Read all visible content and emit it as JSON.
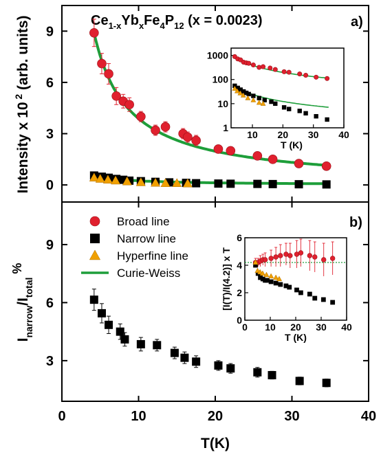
{
  "colors": {
    "broad": "#e0202e",
    "narrow": "#000000",
    "hyperfine": "#f0a000",
    "curie": "#1e9e3a",
    "refline": "#1e9e3a"
  },
  "chart_data": [
    {
      "panel": "a",
      "type": "scatter",
      "title": {
        "prefix": "Ce",
        "sub1": "1-x",
        "mid1": "Yb",
        "sub2": "x",
        "mid2": "Fe",
        "sub3": "4",
        "mid3": "P",
        "sub4": "12",
        "suffix": " (x = 0.0023)"
      },
      "panel_label": "a)",
      "xlim": [
        0,
        40
      ],
      "ylim": [
        -1,
        10.5
      ],
      "yticks": [
        "0",
        "3",
        "6",
        "9"
      ],
      "ytick_values": [
        0,
        3,
        6,
        9
      ],
      "ylabel": {
        "main": "Intensity x 10",
        "sup": " 2",
        "tail": " (arb. units)"
      },
      "series": [
        {
          "key": "broad",
          "x": [
            4.2,
            5.2,
            6.1,
            7.1,
            8.0,
            8.8,
            10.3,
            12.2,
            13.5,
            15.8,
            16.4,
            17.5,
            20.4,
            22.0,
            25.5,
            27.5,
            30.9,
            34.5
          ],
          "y": [
            8.9,
            7.1,
            6.5,
            5.2,
            4.9,
            4.7,
            4.0,
            3.2,
            3.4,
            3.0,
            2.8,
            2.6,
            2.1,
            2.0,
            1.7,
            1.5,
            1.25,
            1.1
          ],
          "err": [
            0.8,
            0.6,
            0.6,
            0.5,
            0.4,
            0.4,
            0.3,
            0.3,
            0.3,
            0.3,
            0.3,
            0.3,
            0.2,
            0.2,
            0.2,
            0.2,
            0.2,
            0.15
          ]
        },
        {
          "key": "narrow",
          "x": [
            4.2,
            5.2,
            6.1,
            7.1,
            8.0,
            8.8,
            10.3,
            12.2,
            14.0,
            16.2,
            17.5,
            20.4,
            22.0,
            25.5,
            27.5,
            30.9,
            34.5
          ],
          "y": [
            0.55,
            0.48,
            0.42,
            0.35,
            0.3,
            0.25,
            0.22,
            0.18,
            0.15,
            0.12,
            0.1,
            0.08,
            0.07,
            0.06,
            0.05,
            0.04,
            0.03
          ]
        },
        {
          "key": "hyperfine",
          "x": [
            4.2,
            5.0,
            6.0,
            7.0,
            8.5,
            10.3,
            12.2,
            13.5,
            15.0,
            16.4
          ],
          "y": [
            0.42,
            0.35,
            0.3,
            0.25,
            0.2,
            0.15,
            0.12,
            0.1,
            0.1,
            0.08
          ]
        }
      ],
      "fit": {
        "key": "curie",
        "model": "C/(T+theta)",
        "C": 40.0,
        "theta": 0.3,
        "x_range": [
          4.2,
          35
        ]
      },
      "fit_narrow": {
        "key": "curie",
        "C": 2.5,
        "theta": 0.3,
        "x_range": [
          4.2,
          35
        ]
      },
      "inset": {
        "type": "scatter",
        "yscale": "log",
        "xlim": [
          3,
          40
        ],
        "ylim": [
          1,
          2000
        ],
        "xticks": [
          "10",
          "20",
          "30",
          "40"
        ],
        "xtick_values": [
          10,
          20,
          30,
          40
        ],
        "yticks": [
          "1",
          "10",
          "100",
          "1000"
        ],
        "ytick_values": [
          1,
          10,
          100,
          1000
        ],
        "xlabel": "T (K)",
        "series": [
          {
            "key": "broad",
            "x": [
              4.2,
              5.2,
              6.1,
              7.1,
              8.0,
              8.8,
              10.3,
              12.2,
              13.5,
              15.8,
              17.5,
              20.4,
              22.0,
              25.5,
              27.5,
              30.9,
              34.5
            ],
            "y": [
              890,
              710,
              650,
              520,
              490,
              470,
              400,
              320,
              340,
              300,
              260,
              210,
              200,
              170,
              150,
              125,
              110
            ]
          },
          {
            "key": "narrow",
            "x": [
              4.2,
              5.2,
              6.1,
              7.1,
              8.0,
              8.8,
              10.3,
              12.2,
              14.0,
              16.2,
              17.5,
              20.4,
              22.0,
              25.5,
              27.5,
              30.9,
              34.5
            ],
            "y": [
              55,
              45,
              38,
              32,
              28,
              25,
              21,
              17,
              14,
              12,
              10,
              7,
              6,
              5,
              4,
              3,
              2.2
            ]
          },
          {
            "key": "hyperfine",
            "x": [
              4.2,
              5.0,
              6.0,
              7.0,
              8.5,
              10.3,
              12.2,
              13.5
            ],
            "y": [
              42,
              33,
              27,
              22,
              17,
              14,
              11,
              10
            ]
          }
        ],
        "fits": [
          {
            "key": "curie",
            "C": 4000,
            "theta": 0.3
          },
          {
            "key": "curie",
            "C": 250,
            "theta": 0.3
          }
        ]
      }
    },
    {
      "panel": "b",
      "type": "scatter",
      "panel_label": "b)",
      "xlim": [
        0,
        40
      ],
      "ylim": [
        0.9,
        11.2
      ],
      "xticks": [
        "0",
        "10",
        "20",
        "30",
        "40"
      ],
      "xtick_values": [
        0,
        10,
        20,
        30,
        40
      ],
      "yticks": [
        "3",
        "6",
        "9"
      ],
      "ytick_values": [
        3,
        6,
        9
      ],
      "xlabel": "T(K)",
      "ylabel": {
        "i1": "I",
        "s1": "narrow",
        "mid": "/I",
        "s2": "total",
        "tail": " %"
      },
      "series": [
        {
          "key": "narrow",
          "x": [
            4.2,
            5.2,
            6.1,
            7.6,
            8.2,
            10.3,
            12.4,
            14.7,
            16.0,
            17.5,
            20.4,
            22.0,
            25.5,
            27.4,
            31.0,
            34.5
          ],
          "y": [
            6.15,
            5.45,
            4.85,
            4.5,
            4.1,
            3.85,
            3.8,
            3.4,
            3.15,
            2.95,
            2.75,
            2.6,
            2.4,
            2.25,
            1.95,
            1.85
          ],
          "err": [
            0.55,
            0.5,
            0.45,
            0.4,
            0.35,
            0.35,
            0.3,
            0.3,
            0.3,
            0.3,
            0.25,
            0.25,
            0.25,
            0.2,
            0.2,
            0.2
          ]
        }
      ],
      "legend": {
        "position": "top-left",
        "entries": [
          {
            "key": "broad",
            "label": "Broad line",
            "marker": "circle"
          },
          {
            "key": "narrow",
            "label": "Narrow line",
            "marker": "square"
          },
          {
            "key": "hyperfine",
            "label": "Hyperfine line",
            "marker": "triangle"
          },
          {
            "key": "curie",
            "label": "Curie-Weiss",
            "marker": "line"
          }
        ]
      },
      "inset": {
        "type": "scatter",
        "xlim": [
          0,
          40
        ],
        "ylim": [
          0,
          6
        ],
        "xticks": [
          "0",
          "10",
          "20",
          "30",
          "40"
        ],
        "xtick_values": [
          0,
          10,
          20,
          30,
          40
        ],
        "yticks": [
          "0",
          "2",
          "4",
          "6"
        ],
        "ytick_values": [
          0,
          2,
          4,
          6
        ],
        "xlabel": "T (K)",
        "ylabel": "[I(T)/I(4.2)] x T",
        "refline": 4.2,
        "series": [
          {
            "key": "broad",
            "x": [
              4.2,
              5.2,
              6.1,
              7.1,
              8.0,
              10.3,
              12.2,
              14.0,
              16.2,
              17.8,
              20.4,
              22.0,
              25.5,
              27.5,
              31.0,
              34.5
            ],
            "y": [
              4.2,
              4.2,
              4.3,
              4.4,
              4.4,
              4.5,
              4.6,
              4.7,
              4.8,
              4.7,
              4.8,
              4.9,
              4.7,
              4.6,
              4.4,
              4.5
            ],
            "err": [
              0.3,
              0.3,
              0.4,
              0.4,
              0.5,
              0.6,
              0.7,
              0.8,
              0.8,
              0.9,
              1.0,
              1.0,
              1.1,
              1.1,
              1.2,
              1.2
            ]
          },
          {
            "key": "narrow",
            "x": [
              4.2,
              5.2,
              6.1,
              7.1,
              8.0,
              8.8,
              10.3,
              12.2,
              14.0,
              16.2,
              17.5,
              20.4,
              22.0,
              25.5,
              27.5,
              30.9,
              34.5
            ],
            "y": [
              4.0,
              3.4,
              3.1,
              3.0,
              2.9,
              2.9,
              2.8,
              2.7,
              2.6,
              2.5,
              2.4,
              2.2,
              2.0,
              1.9,
              1.6,
              1.5,
              1.3
            ]
          },
          {
            "key": "hyperfine",
            "x": [
              4.2,
              5.0,
              6.0,
              7.0,
              8.5,
              10.3,
              12.2,
              13.5
            ],
            "y": [
              4.2,
              3.6,
              3.5,
              3.4,
              3.3,
              3.2,
              3.1,
              3.0
            ]
          }
        ]
      }
    }
  ]
}
